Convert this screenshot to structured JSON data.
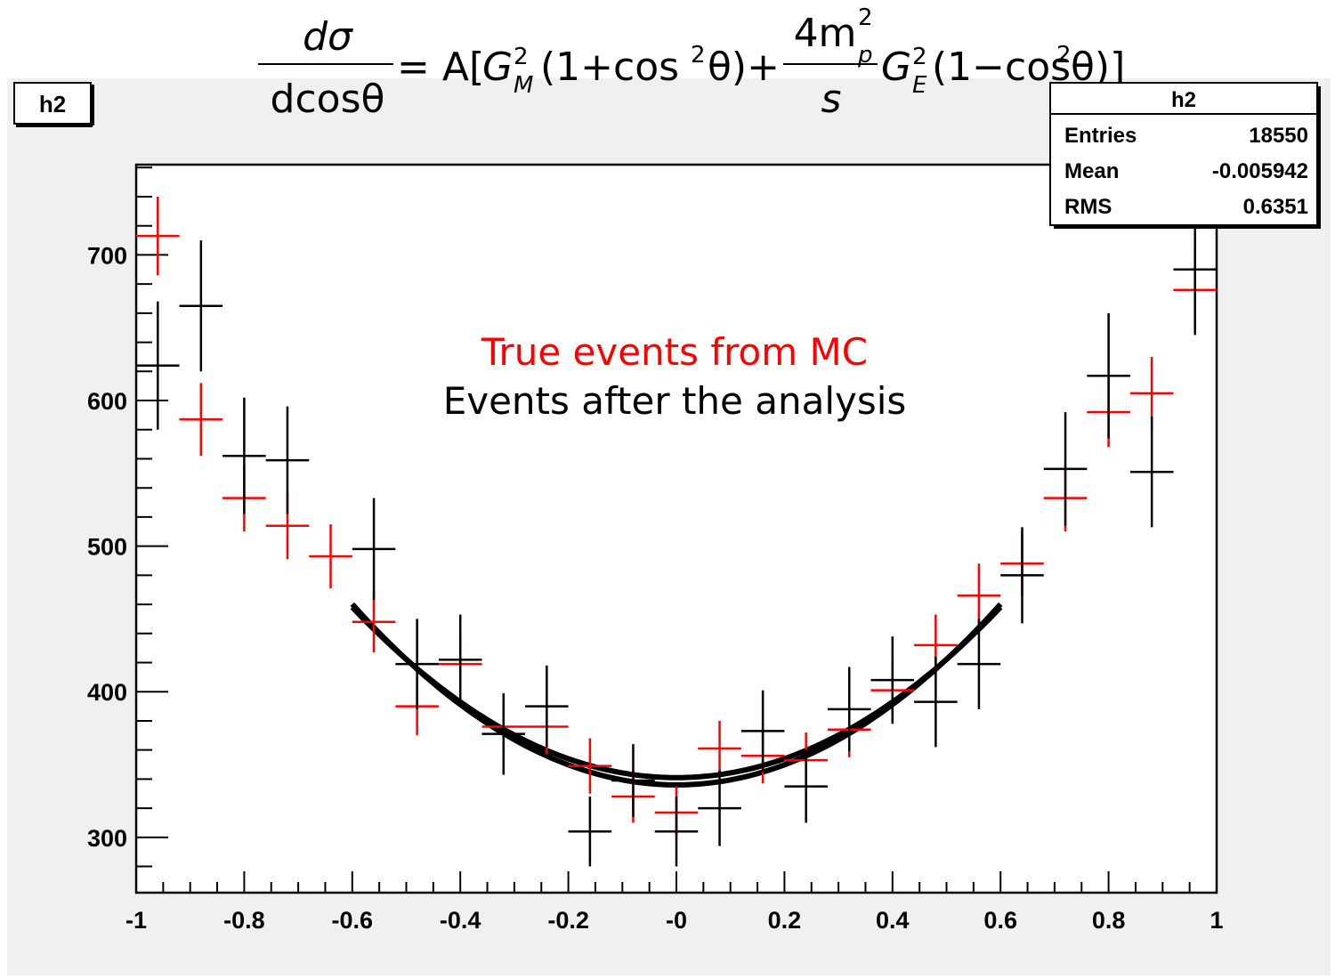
{
  "pad": {
    "title": "h2"
  },
  "stats": {
    "title": "h2",
    "rows": [
      {
        "label": "Entries",
        "value": "18550"
      },
      {
        "label": "Mean",
        "value": "-0.005942"
      },
      {
        "label": "RMS",
        "value": "0.6351"
      }
    ]
  },
  "formula": {
    "lhs_num": "dσ",
    "lhs_den": "dcosθ",
    "eq_a": "= A[",
    "gm": "G",
    "gm_sup": "2",
    "gm_sub": "M",
    "term1": "(1+cos",
    "sq": "2",
    "theta_close": "θ)+",
    "frac_num": "4m",
    "frac_num_sup": "2",
    "frac_num_sub": "p",
    "frac_den": "s",
    "ge": "G",
    "ge_sup": "2",
    "ge_sub": "E",
    "term2": "(1−cos",
    "theta_close2": "θ)]"
  },
  "annotations": {
    "red_label": "True events from MC",
    "black_label": "Events after the analysis"
  },
  "colors": {
    "true_mc": "#ff0000",
    "analysis": "#000000",
    "fit": "#000000"
  },
  "chart_data": {
    "type": "scatter",
    "title": "h2",
    "xlim": [
      -1,
      1
    ],
    "ylim": [
      262,
      762
    ],
    "x_ticks": [
      -1,
      -0.8,
      -0.6,
      -0.4,
      -0.2,
      0,
      0.2,
      0.4,
      0.6,
      0.8,
      1
    ],
    "x_tick_labels": [
      "-1",
      "-0.8",
      "-0.6",
      "-0.4",
      "-0.2",
      "-0",
      "0.2",
      "0.4",
      "0.6",
      "0.8",
      "1"
    ],
    "y_ticks": [
      300,
      400,
      500,
      600,
      700
    ],
    "y_tick_labels": [
      "300",
      "400",
      "500",
      "600",
      "700"
    ],
    "bin_half_width": 0.04,
    "series": [
      {
        "name": "True events from MC",
        "color": "#ff0000",
        "points": [
          {
            "x": -0.96,
            "y": 713,
            "err": 27
          },
          {
            "x": -0.88,
            "y": 587,
            "err": 25
          },
          {
            "x": -0.8,
            "y": 533,
            "err": 23
          },
          {
            "x": -0.72,
            "y": 514,
            "err": 23
          },
          {
            "x": -0.64,
            "y": 493,
            "err": 22
          },
          {
            "x": -0.56,
            "y": 448,
            "err": 21
          },
          {
            "x": -0.48,
            "y": 390,
            "err": 20
          },
          {
            "x": -0.4,
            "y": 419,
            "err": 20
          },
          {
            "x": -0.32,
            "y": 376,
            "err": 19
          },
          {
            "x": -0.24,
            "y": 376,
            "err": 19
          },
          {
            "x": -0.16,
            "y": 349,
            "err": 19
          },
          {
            "x": -0.08,
            "y": 328,
            "err": 18
          },
          {
            "x": 0.0,
            "y": 317,
            "err": 18
          },
          {
            "x": 0.08,
            "y": 361,
            "err": 19
          },
          {
            "x": 0.16,
            "y": 356,
            "err": 19
          },
          {
            "x": 0.24,
            "y": 353,
            "err": 19
          },
          {
            "x": 0.32,
            "y": 374,
            "err": 19
          },
          {
            "x": 0.4,
            "y": 401,
            "err": 20
          },
          {
            "x": 0.48,
            "y": 432,
            "err": 21
          },
          {
            "x": 0.56,
            "y": 466,
            "err": 22
          },
          {
            "x": 0.64,
            "y": 488,
            "err": 22
          },
          {
            "x": 0.72,
            "y": 533,
            "err": 23
          },
          {
            "x": 0.8,
            "y": 592,
            "err": 24
          },
          {
            "x": 0.88,
            "y": 605,
            "err": 25
          },
          {
            "x": 0.96,
            "y": 676,
            "err": 26
          }
        ]
      },
      {
        "name": "Events after the analysis",
        "color": "#000000",
        "points": [
          {
            "x": -0.96,
            "y": 624,
            "err": 44
          },
          {
            "x": -0.88,
            "y": 665,
            "err": 45
          },
          {
            "x": -0.8,
            "y": 562,
            "err": 40
          },
          {
            "x": -0.72,
            "y": 559,
            "err": 37
          },
          {
            "x": -0.56,
            "y": 498,
            "err": 35
          },
          {
            "x": -0.48,
            "y": 419,
            "err": 31
          },
          {
            "x": -0.4,
            "y": 422,
            "err": 31
          },
          {
            "x": -0.32,
            "y": 371,
            "err": 28
          },
          {
            "x": -0.24,
            "y": 390,
            "err": 28
          },
          {
            "x": -0.16,
            "y": 304,
            "err": 24
          },
          {
            "x": -0.08,
            "y": 339,
            "err": 25
          },
          {
            "x": 0.0,
            "y": 304,
            "err": 24
          },
          {
            "x": 0.08,
            "y": 320,
            "err": 26
          },
          {
            "x": 0.16,
            "y": 373,
            "err": 28
          },
          {
            "x": 0.24,
            "y": 335,
            "err": 25
          },
          {
            "x": 0.32,
            "y": 388,
            "err": 29
          },
          {
            "x": 0.4,
            "y": 408,
            "err": 30
          },
          {
            "x": 0.48,
            "y": 393,
            "err": 31
          },
          {
            "x": 0.56,
            "y": 419,
            "err": 31
          },
          {
            "x": 0.64,
            "y": 480,
            "err": 33
          },
          {
            "x": 0.72,
            "y": 553,
            "err": 39
          },
          {
            "x": 0.8,
            "y": 617,
            "err": 43
          },
          {
            "x": 0.88,
            "y": 551,
            "err": 38
          },
          {
            "x": 0.96,
            "y": 690,
            "err": 45
          }
        ]
      }
    ],
    "fits": [
      {
        "color": "#000000",
        "a": 336,
        "b": 345,
        "xmin": -0.6,
        "xmax": 0.6
      },
      {
        "color": "#000000",
        "a": 341,
        "b": 325,
        "xmin": -0.6,
        "xmax": 0.6
      }
    ]
  }
}
